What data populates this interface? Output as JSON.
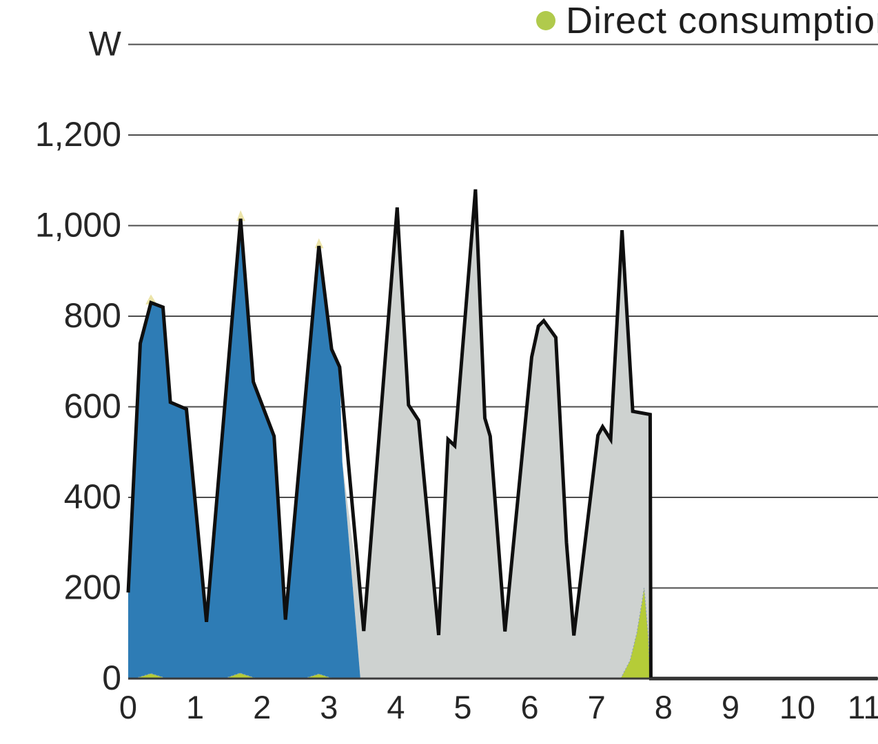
{
  "legend": {
    "items": [
      {
        "label": "Direct consumption",
        "color": "#b0ca4c"
      }
    ]
  },
  "chart_data": {
    "type": "area",
    "title": "",
    "ylabel": "W",
    "xlabel": "",
    "grid": true,
    "legend_position": "top-right",
    "x_axis": {
      "min": 0,
      "max": 11.2,
      "ticks": [
        0,
        1,
        2,
        3,
        4,
        5,
        6,
        7,
        8,
        9,
        10,
        11
      ]
    },
    "y_axis": {
      "min": 0,
      "max": 1400,
      "unit": "W",
      "ticks": [
        {
          "value": 1400,
          "label": "W"
        },
        {
          "value": 1200,
          "label": "1,200"
        },
        {
          "value": 1000,
          "label": "1,000"
        },
        {
          "value": 800,
          "label": "800"
        },
        {
          "value": 600,
          "label": "600"
        },
        {
          "value": 400,
          "label": "400"
        },
        {
          "value": 200,
          "label": "200"
        },
        {
          "value": 0,
          "label": "0"
        }
      ]
    },
    "colors": {
      "line": "#0f0f0f",
      "blue_area": "#2e7cb5",
      "gray_area": "#ced2d0",
      "green_area": "#b5cc38",
      "pale_tip": "#ece4a9",
      "grid_line": "#4c4c4c",
      "axis_line": "#3a3a3a"
    },
    "series": [
      {
        "id": "consumption_line",
        "kind": "line",
        "color": "#0f0f0f",
        "stroke_width": 5,
        "points": [
          [
            0,
            190
          ],
          [
            0.18,
            740
          ],
          [
            0.34,
            830
          ],
          [
            0.52,
            820
          ],
          [
            0.63,
            610
          ],
          [
            0.87,
            595
          ],
          [
            1.17,
            125
          ],
          [
            1.68,
            1015
          ],
          [
            1.87,
            655
          ],
          [
            2.18,
            535
          ],
          [
            2.35,
            130
          ],
          [
            2.85,
            955
          ],
          [
            3.04,
            727
          ],
          [
            3.16,
            688
          ],
          [
            3.52,
            105
          ],
          [
            4.02,
            1040
          ],
          [
            4.19,
            604
          ],
          [
            4.34,
            570
          ],
          [
            4.64,
            96
          ],
          [
            4.78,
            528
          ],
          [
            4.88,
            514
          ],
          [
            5.19,
            1080
          ],
          [
            5.33,
            575
          ],
          [
            5.41,
            535
          ],
          [
            5.63,
            104
          ],
          [
            6.03,
            710
          ],
          [
            6.13,
            778
          ],
          [
            6.21,
            790
          ],
          [
            6.39,
            753
          ],
          [
            6.55,
            300
          ],
          [
            6.66,
            95
          ],
          [
            7.02,
            537
          ],
          [
            7.09,
            556
          ],
          [
            7.21,
            528
          ],
          [
            7.38,
            990
          ],
          [
            7.54,
            590
          ],
          [
            7.8,
            583
          ],
          [
            7.81,
            0
          ],
          [
            11.2,
            0
          ]
        ]
      },
      {
        "id": "series_blue",
        "kind": "area",
        "color": "#2e7cb5",
        "points": [
          [
            0,
            0
          ],
          [
            0,
            190
          ],
          [
            0.18,
            740
          ],
          [
            0.34,
            830
          ],
          [
            0.52,
            820
          ],
          [
            0.63,
            610
          ],
          [
            0.87,
            595
          ],
          [
            1.17,
            125
          ],
          [
            1.68,
            1015
          ],
          [
            1.87,
            655
          ],
          [
            2.18,
            535
          ],
          [
            2.35,
            130
          ],
          [
            2.85,
            955
          ],
          [
            3.04,
            727
          ],
          [
            3.16,
            688
          ],
          [
            3.2,
            479
          ],
          [
            3.47,
            0
          ]
        ]
      },
      {
        "id": "series_gray",
        "kind": "area",
        "color": "#ced2d0",
        "points": [
          [
            3.2,
            479
          ],
          [
            3.52,
            105
          ],
          [
            4.02,
            1040
          ],
          [
            4.19,
            604
          ],
          [
            4.34,
            570
          ],
          [
            4.64,
            96
          ],
          [
            4.78,
            528
          ],
          [
            4.88,
            514
          ],
          [
            5.19,
            1080
          ],
          [
            5.33,
            575
          ],
          [
            5.41,
            535
          ],
          [
            5.63,
            104
          ],
          [
            6.03,
            710
          ],
          [
            6.13,
            778
          ],
          [
            6.21,
            790
          ],
          [
            6.39,
            753
          ],
          [
            6.55,
            300
          ],
          [
            6.66,
            95
          ],
          [
            7.02,
            537
          ],
          [
            7.09,
            556
          ],
          [
            7.21,
            528
          ],
          [
            7.38,
            990
          ],
          [
            7.54,
            590
          ],
          [
            7.8,
            583
          ],
          [
            7.81,
            0
          ],
          [
            3.47,
            0
          ]
        ]
      },
      {
        "id": "direct_consumption",
        "kind": "area",
        "label": "Direct consumption",
        "color": "#b5cc38",
        "edge_color": "#8fa3b0",
        "polygons": [
          [
            [
              0.1,
              0
            ],
            [
              0.34,
              11
            ],
            [
              0.58,
              0
            ]
          ],
          [
            [
              1.44,
              0
            ],
            [
              1.67,
              12
            ],
            [
              1.92,
              0
            ]
          ],
          [
            [
              2.63,
              0
            ],
            [
              2.85,
              10
            ],
            [
              3.06,
              0
            ]
          ],
          [
            [
              7.36,
              0
            ],
            [
              7.5,
              40
            ],
            [
              7.6,
              100
            ],
            [
              7.68,
              170
            ],
            [
              7.71,
              200
            ],
            [
              7.77,
              95
            ],
            [
              7.8,
              0
            ]
          ]
        ]
      },
      {
        "id": "pale_peak_tips",
        "kind": "area",
        "color": "#ece4a9",
        "polygons": [
          [
            [
              0.26,
              826
            ],
            [
              0.34,
              848
            ],
            [
              0.43,
              826
            ]
          ],
          [
            [
              1.62,
              1010
            ],
            [
              1.68,
              1034
            ],
            [
              1.75,
              1010
            ]
          ],
          [
            [
              2.79,
              950
            ],
            [
              2.85,
              972
            ],
            [
              2.92,
              950
            ]
          ]
        ]
      }
    ]
  }
}
